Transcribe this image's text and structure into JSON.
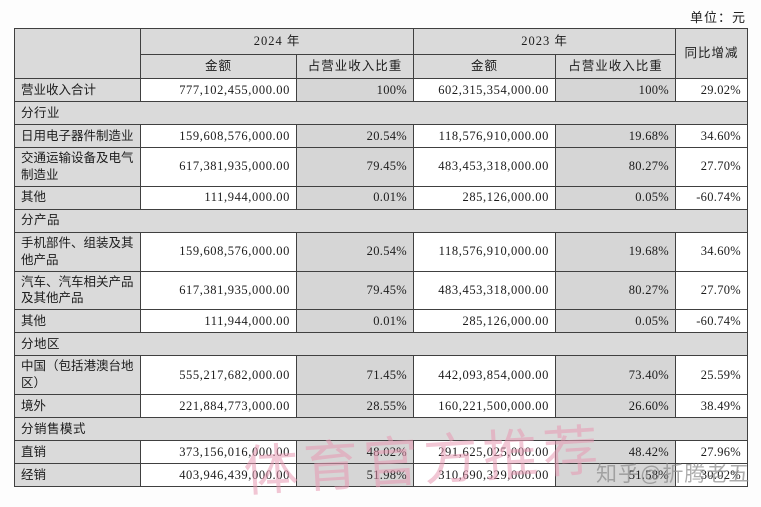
{
  "meta": {
    "unit_label": "单位：元"
  },
  "table": {
    "header": {
      "year_2024": "2024 年",
      "year_2023": "2023 年",
      "yoy": "同比增减",
      "amount_2024": "金额",
      "ratio_2024": "占营业收入比重",
      "amount_2023": "金额",
      "ratio_2023": "占营业收入比重"
    },
    "rows": [
      {
        "type": "data",
        "label": "营业收入合计",
        "a24": "777,102,455,000.00",
        "r24": "100%",
        "a23": "602,315,354,000.00",
        "r23": "100%",
        "yoy": "29.02%"
      },
      {
        "type": "section",
        "label": "分行业"
      },
      {
        "type": "data",
        "label": "日用电子器件制造业",
        "a24": "159,608,576,000.00",
        "r24": "20.54%",
        "a23": "118,576,910,000.00",
        "r23": "19.68%",
        "yoy": "34.60%"
      },
      {
        "type": "data",
        "label": "交通运输设备及电气制造业",
        "a24": "617,381,935,000.00",
        "r24": "79.45%",
        "a23": "483,453,318,000.00",
        "r23": "80.27%",
        "yoy": "27.70%"
      },
      {
        "type": "data",
        "label": "其他",
        "a24": "111,944,000.00",
        "r24": "0.01%",
        "a23": "285,126,000.00",
        "r23": "0.05%",
        "yoy": "-60.74%"
      },
      {
        "type": "section",
        "label": "分产品"
      },
      {
        "type": "data",
        "label": "手机部件、组装及其他产品",
        "a24": "159,608,576,000.00",
        "r24": "20.54%",
        "a23": "118,576,910,000.00",
        "r23": "19.68%",
        "yoy": "34.60%"
      },
      {
        "type": "data",
        "label": "汽车、汽车相关产品及其他产品",
        "a24": "617,381,935,000.00",
        "r24": "79.45%",
        "a23": "483,453,318,000.00",
        "r23": "80.27%",
        "yoy": "27.70%"
      },
      {
        "type": "data",
        "label": "其他",
        "a24": "111,944,000.00",
        "r24": "0.01%",
        "a23": "285,126,000.00",
        "r23": "0.05%",
        "yoy": "-60.74%"
      },
      {
        "type": "section",
        "label": "分地区"
      },
      {
        "type": "data",
        "label": "中国（包括港澳台地区）",
        "a24": "555,217,682,000.00",
        "r24": "71.45%",
        "a23": "442,093,854,000.00",
        "r23": "73.40%",
        "yoy": "25.59%"
      },
      {
        "type": "data",
        "label": "境外",
        "a24": "221,884,773,000.00",
        "r24": "28.55%",
        "a23": "160,221,500,000.00",
        "r23": "26.60%",
        "yoy": "38.49%"
      },
      {
        "type": "section",
        "label": "分销售模式"
      },
      {
        "type": "data",
        "label": "直销",
        "a24": "373,156,016,000.00",
        "r24": "48.02%",
        "a23": "291,625,025,000.00",
        "r23": "48.42%",
        "yoy": "27.96%"
      },
      {
        "type": "data",
        "label": "经销",
        "a24": "403,946,439,000.00",
        "r24": "51.98%",
        "a23": "310,690,329,000.00",
        "r23": "51.58%",
        "yoy": "30.02%"
      }
    ]
  },
  "watermarks": {
    "pink_text": "体育官方推荐",
    "zhihu_text": "知乎@折腾老五"
  }
}
